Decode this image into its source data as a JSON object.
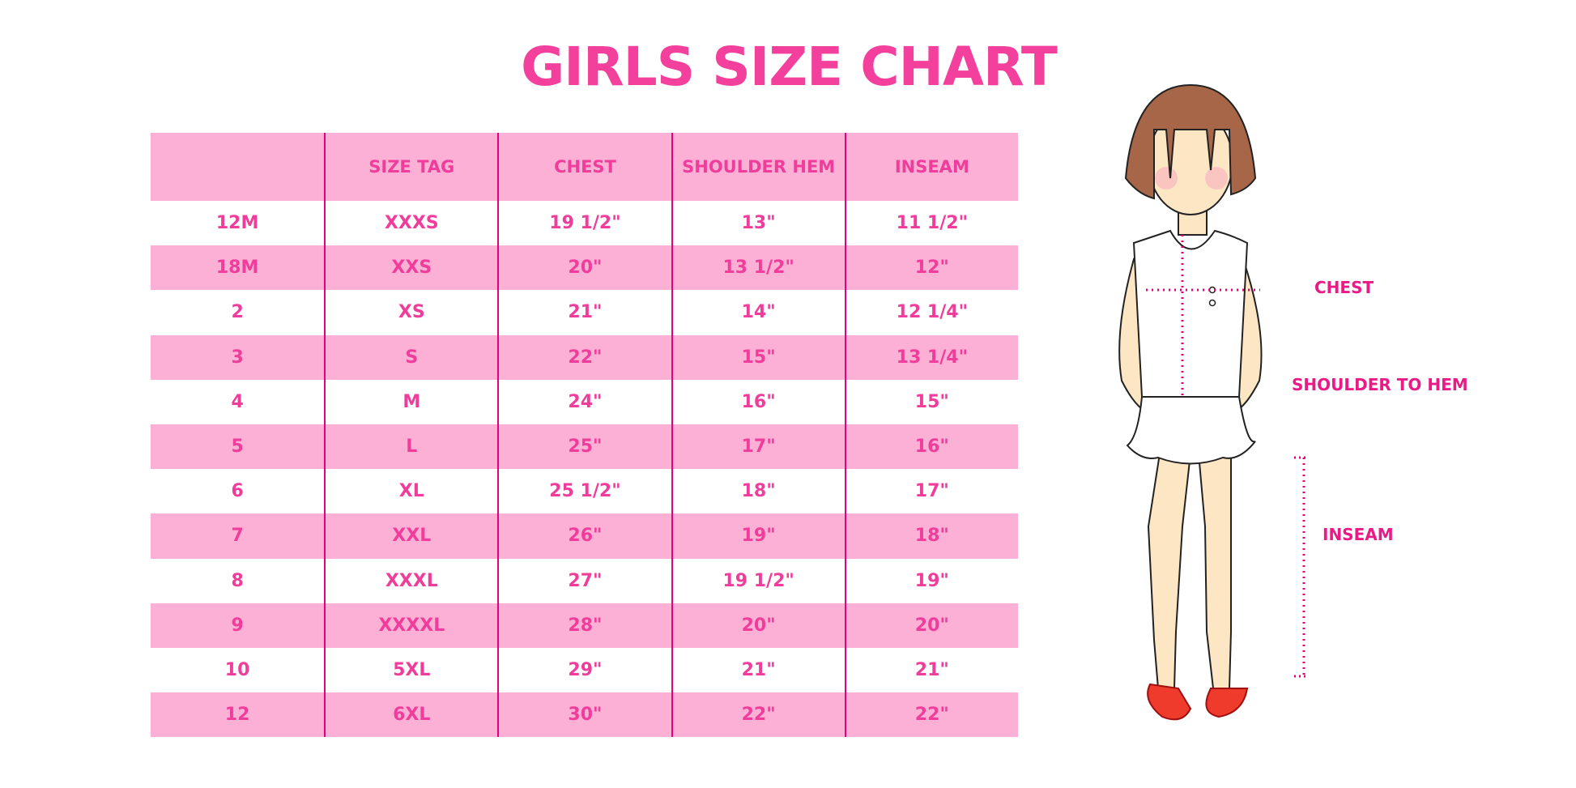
{
  "title": "GIRLS SIZE CHART",
  "table": {
    "headers": [
      "",
      "SIZE TAG",
      "CHEST",
      "SHOULDER HEM",
      "INSEAM"
    ],
    "rows": [
      [
        "12M",
        "XXXS",
        "19 1/2\"",
        "13\"",
        "11 1/2\""
      ],
      [
        "18M",
        "XXS",
        "20\"",
        "13 1/2\"",
        "12\""
      ],
      [
        "2",
        "XS",
        "21\"",
        "14\"",
        "12 1/4\""
      ],
      [
        "3",
        "S",
        "22\"",
        "15\"",
        "13 1/4\""
      ],
      [
        "4",
        "M",
        "24\"",
        "16\"",
        "15\""
      ],
      [
        "5",
        "L",
        "25\"",
        "17\"",
        "16\""
      ],
      [
        "6",
        "XL",
        "25 1/2\"",
        "18\"",
        "17\""
      ],
      [
        "7",
        "XXL",
        "26\"",
        "19\"",
        "18\""
      ],
      [
        "8",
        "XXXL",
        "27\"",
        "19 1/2\"",
        "19\""
      ],
      [
        "9",
        "XXXXL",
        "28\"",
        "20\"",
        "20\""
      ],
      [
        "10",
        "5XL",
        "29\"",
        "21\"",
        "21\""
      ],
      [
        "12",
        "6XL",
        "30\"",
        "22\"",
        "22\""
      ]
    ]
  },
  "figure": {
    "labels": {
      "chest": "CHEST",
      "shoulder_to_hem": "SHOULDER TO HEM",
      "inseam": "INSEAM"
    }
  },
  "colors": {
    "accent": "#f03c9a",
    "row_pink": "#fdb0d6",
    "divider": "#e5007e"
  }
}
